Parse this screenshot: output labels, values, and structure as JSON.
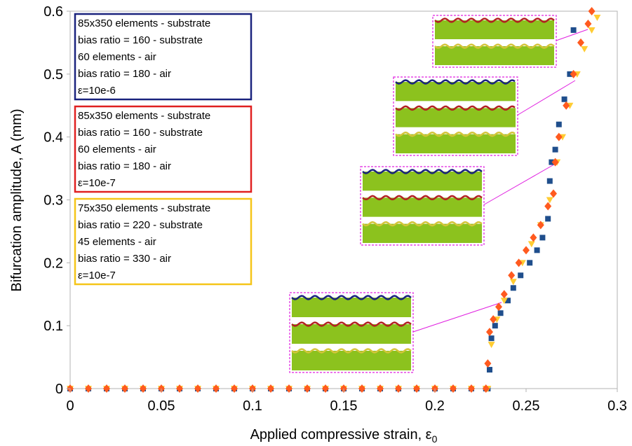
{
  "chart_data": {
    "type": "scatter",
    "xlabel": "Applied compressive strain, ε",
    "xlabel_subscript": "0",
    "ylabel": "Bifurcation amplitude, A (mm)",
    "xlim": [
      0,
      0.3
    ],
    "ylim": [
      0,
      0.6
    ],
    "xticks": [
      0,
      0.05,
      0.1,
      0.15,
      0.2,
      0.25,
      0.3
    ],
    "yticks": [
      0,
      0.1,
      0.2,
      0.3,
      0.4,
      0.5,
      0.6
    ],
    "series": [
      {
        "legend_lines": [
          "85x350 elements - substrate",
          "bias ratio = 160 - substrate",
          "60 elements - air",
          "bias ratio = 180 - air",
          "ε=10e-6"
        ],
        "color": "#1f4e8c",
        "border": "#1a237e",
        "marker": "square",
        "x": [
          0,
          0.01,
          0.02,
          0.03,
          0.04,
          0.05,
          0.06,
          0.07,
          0.08,
          0.09,
          0.1,
          0.11,
          0.12,
          0.13,
          0.14,
          0.15,
          0.16,
          0.17,
          0.18,
          0.19,
          0.2,
          0.21,
          0.22,
          0.228,
          0.229,
          0.23,
          0.231,
          0.233,
          0.236,
          0.24,
          0.243,
          0.247,
          0.252,
          0.256,
          0.259,
          0.262,
          0.263,
          0.264,
          0.266,
          0.268,
          0.271,
          0.274,
          0.276
        ],
        "values": [
          0,
          0,
          0,
          0,
          0,
          0,
          0,
          0,
          0,
          0,
          0,
          0,
          0,
          0,
          0,
          0,
          0,
          0,
          0,
          0,
          0,
          0,
          0,
          0,
          0,
          0.03,
          0.08,
          0.1,
          0.12,
          0.14,
          0.16,
          0.18,
          0.2,
          0.22,
          0.24,
          0.27,
          0.33,
          0.36,
          0.38,
          0.42,
          0.46,
          0.5,
          0.57
        ]
      },
      {
        "legend_lines": [
          "75x350 elements - substrate",
          "bias ratio = 220 - substrate",
          "45 elements - air",
          "bias ratio = 330 - air",
          "ε=10e-7"
        ],
        "color": "#ffcc33",
        "border": "#f5c518",
        "marker": "triangle",
        "x": [
          0,
          0.01,
          0.02,
          0.03,
          0.04,
          0.05,
          0.06,
          0.07,
          0.08,
          0.09,
          0.1,
          0.11,
          0.12,
          0.13,
          0.14,
          0.15,
          0.16,
          0.17,
          0.18,
          0.19,
          0.2,
          0.21,
          0.22,
          0.228,
          0.229,
          0.231,
          0.234,
          0.238,
          0.243,
          0.248,
          0.253,
          0.258,
          0.263,
          0.267,
          0.27,
          0.274,
          0.278,
          0.282,
          0.286,
          0.289
        ],
        "values": [
          0,
          0,
          0,
          0,
          0,
          0,
          0,
          0,
          0,
          0,
          0,
          0,
          0,
          0,
          0,
          0,
          0,
          0,
          0,
          0,
          0,
          0,
          0,
          0,
          0,
          0.07,
          0.11,
          0.14,
          0.17,
          0.2,
          0.23,
          0.26,
          0.3,
          0.36,
          0.4,
          0.45,
          0.5,
          0.54,
          0.57,
          0.59
        ]
      },
      {
        "legend_lines": [
          "85x350 elements - substrate",
          "bias ratio = 160 - substrate",
          "60 elements - air",
          "bias ratio = 180 - air",
          "ε=10e-7"
        ],
        "color": "#ff5a1f",
        "border": "#e02020",
        "marker": "diamond",
        "x": [
          0,
          0.01,
          0.02,
          0.03,
          0.04,
          0.05,
          0.06,
          0.07,
          0.08,
          0.09,
          0.1,
          0.11,
          0.12,
          0.13,
          0.14,
          0.15,
          0.16,
          0.17,
          0.18,
          0.19,
          0.2,
          0.21,
          0.22,
          0.228,
          0.229,
          0.23,
          0.232,
          0.235,
          0.238,
          0.242,
          0.246,
          0.25,
          0.254,
          0.258,
          0.262,
          0.265,
          0.266,
          0.268,
          0.272,
          0.276,
          0.28,
          0.284,
          0.286
        ],
        "values": [
          0,
          0,
          0,
          0,
          0,
          0,
          0,
          0,
          0,
          0,
          0,
          0,
          0,
          0,
          0,
          0,
          0,
          0,
          0,
          0,
          0,
          0,
          0,
          0,
          0.04,
          0.09,
          0.11,
          0.13,
          0.15,
          0.18,
          0.2,
          0.22,
          0.24,
          0.26,
          0.29,
          0.31,
          0.36,
          0.4,
          0.45,
          0.5,
          0.55,
          0.58,
          0.6
        ]
      }
    ]
  }
}
